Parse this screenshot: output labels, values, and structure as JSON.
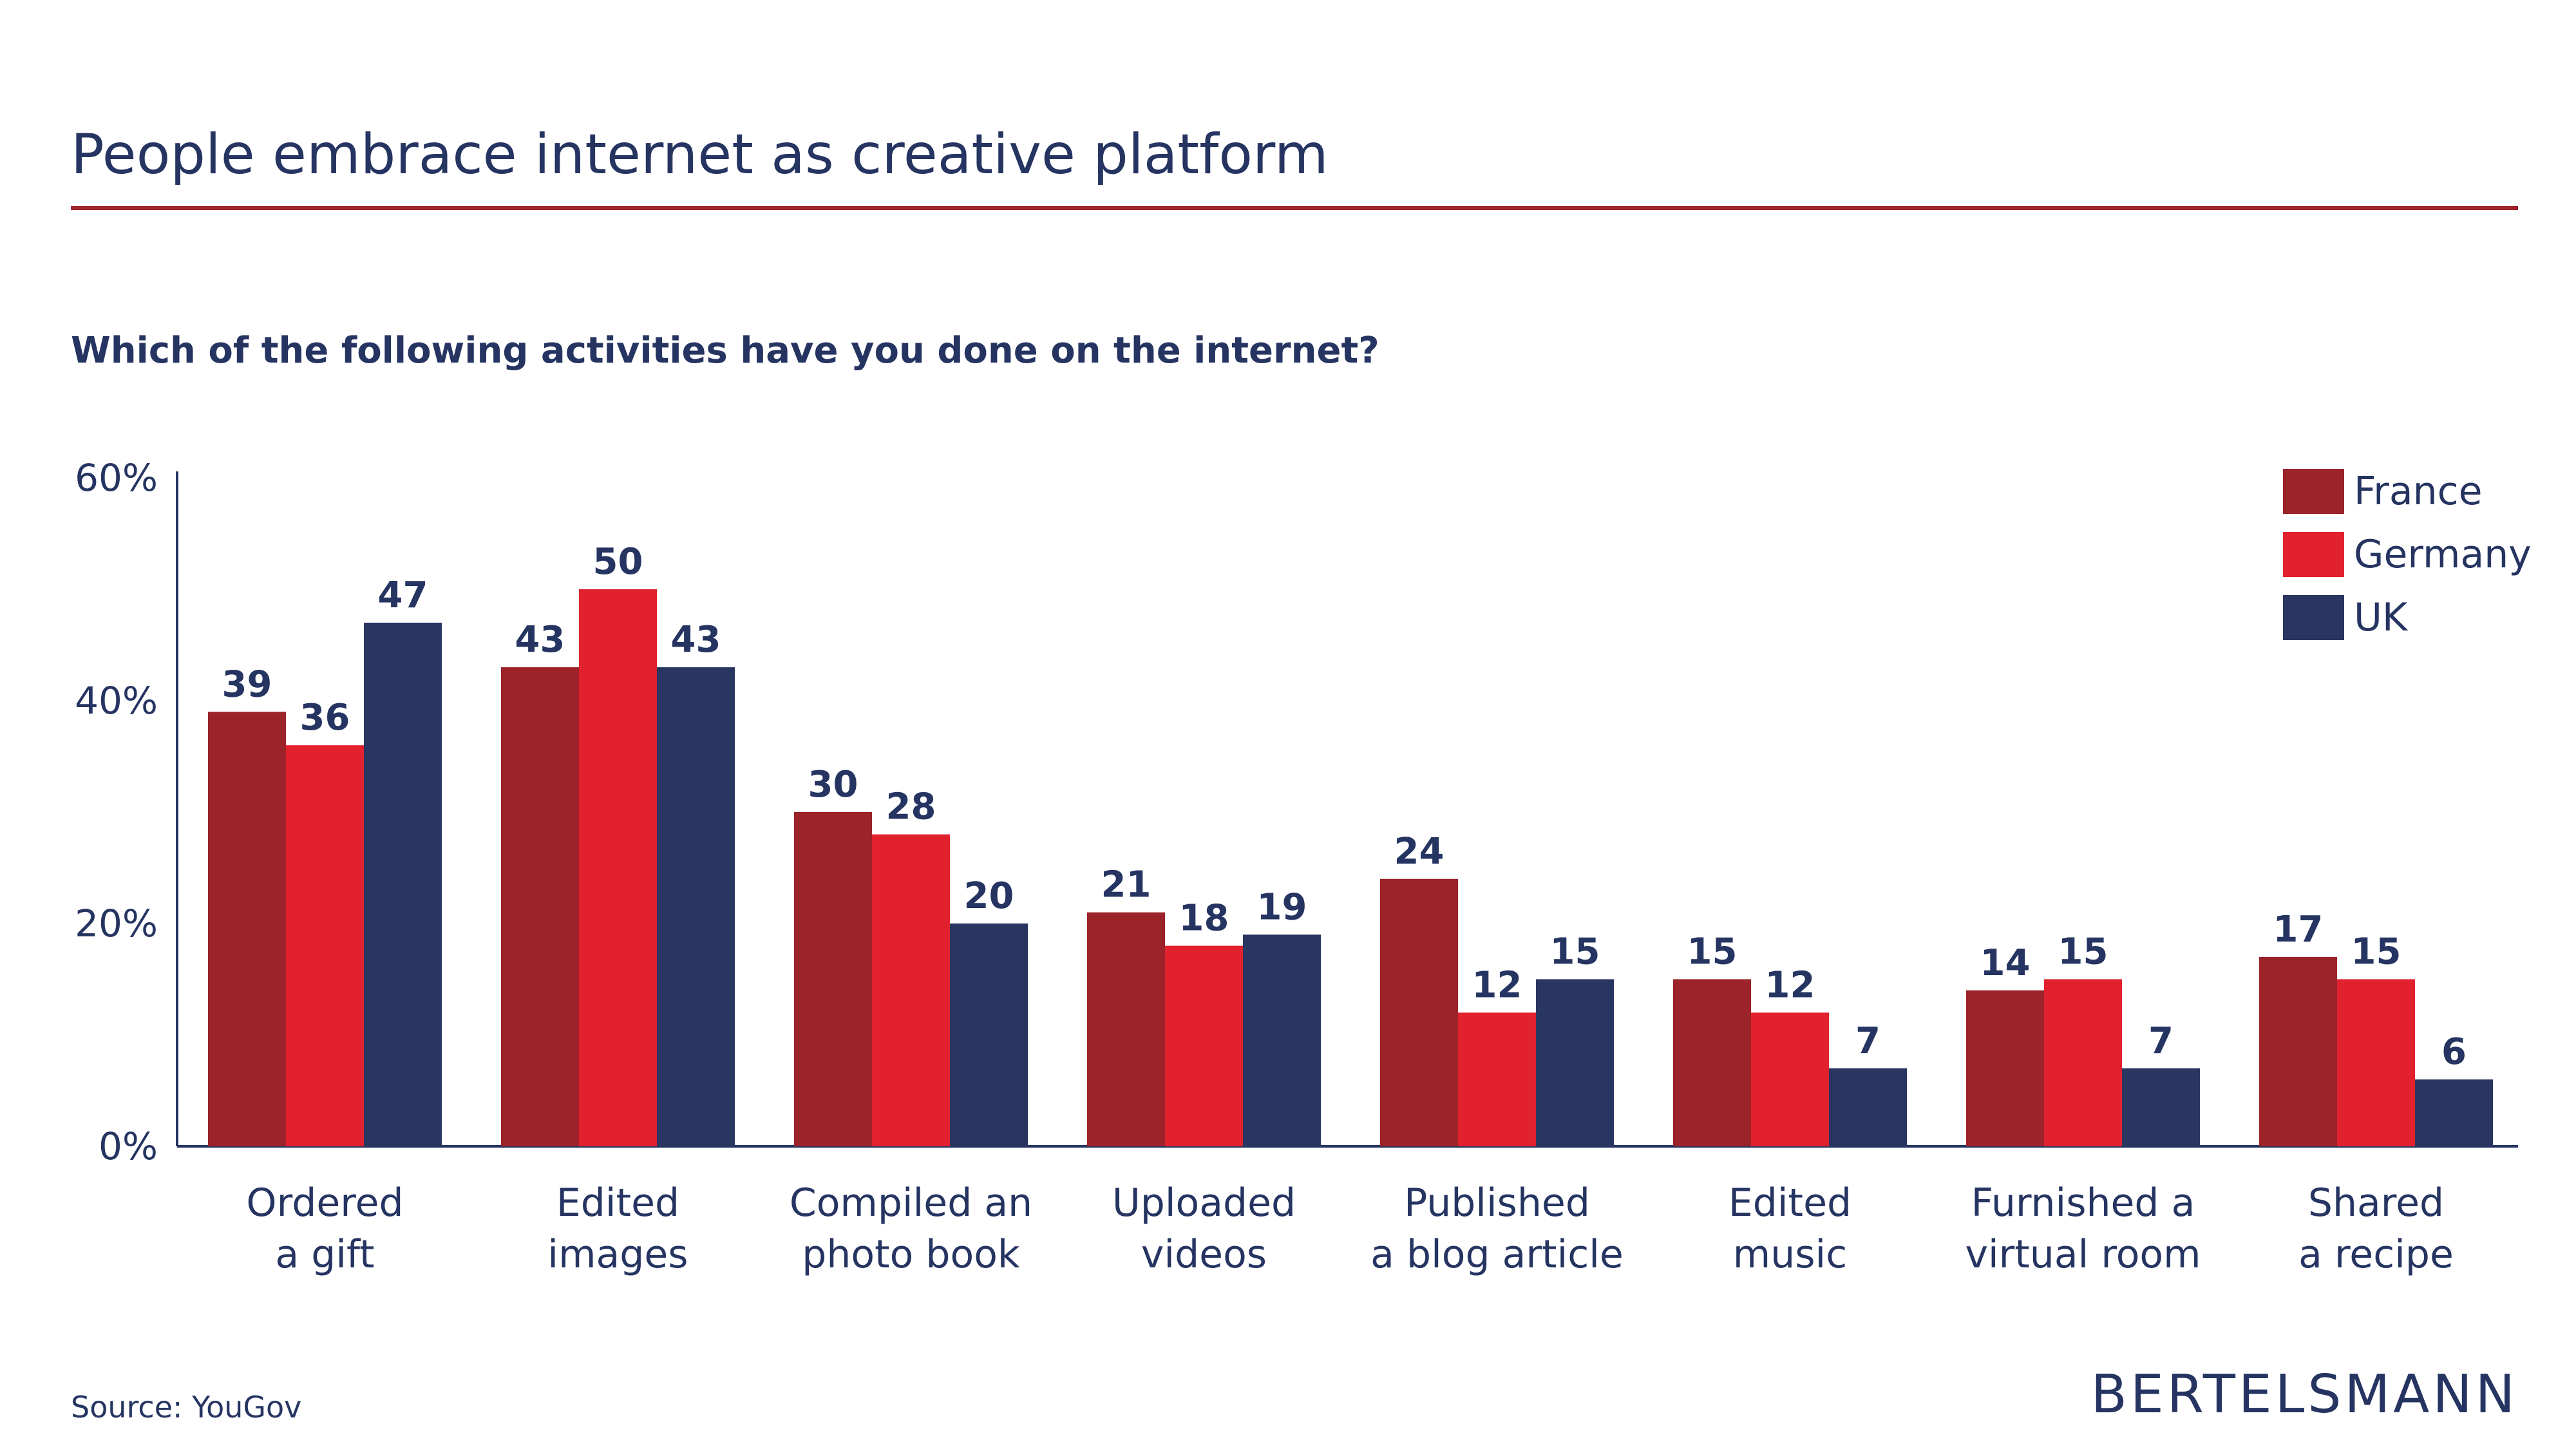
{
  "header": {
    "title": "People embrace internet as creative platform",
    "subtitle": "Which of the following activities have you done on the internet?"
  },
  "footer": {
    "source": "Source: YouGov",
    "logo_text": "BERTELSMANN"
  },
  "colors": {
    "france": "#9b2329",
    "germany": "#e2212e",
    "uk": "#293661",
    "text": "#253461",
    "rule": "#a0242a"
  },
  "chart_data": {
    "type": "bar",
    "title": "People embrace internet as creative platform",
    "subtitle": "Which of the following activities have you done on the internet?",
    "categories": [
      [
        "Ordered",
        "a gift"
      ],
      [
        "Edited",
        "images"
      ],
      [
        "Compiled an",
        "photo book"
      ],
      [
        "Uploaded",
        "videos"
      ],
      [
        "Published",
        "a blog article"
      ],
      [
        "Edited",
        "music"
      ],
      [
        "Furnished a",
        "virtual room"
      ],
      [
        "Shared",
        "a recipe"
      ]
    ],
    "series": [
      {
        "name": "France",
        "color": "#9b2329",
        "values": [
          39,
          43,
          30,
          21,
          24,
          15,
          14,
          17
        ]
      },
      {
        "name": "Germany",
        "color": "#e2212e",
        "values": [
          36,
          50,
          28,
          18,
          12,
          12,
          15,
          15
        ]
      },
      {
        "name": "UK",
        "color": "#293661",
        "values": [
          47,
          43,
          20,
          19,
          15,
          7,
          7,
          6
        ]
      }
    ],
    "ylim": [
      0,
      60
    ],
    "yticks": [
      0,
      20,
      40,
      60
    ],
    "ytick_labels": [
      "0%",
      "20%",
      "40%",
      "60%"
    ],
    "legend": "top-right",
    "grid": false
  }
}
